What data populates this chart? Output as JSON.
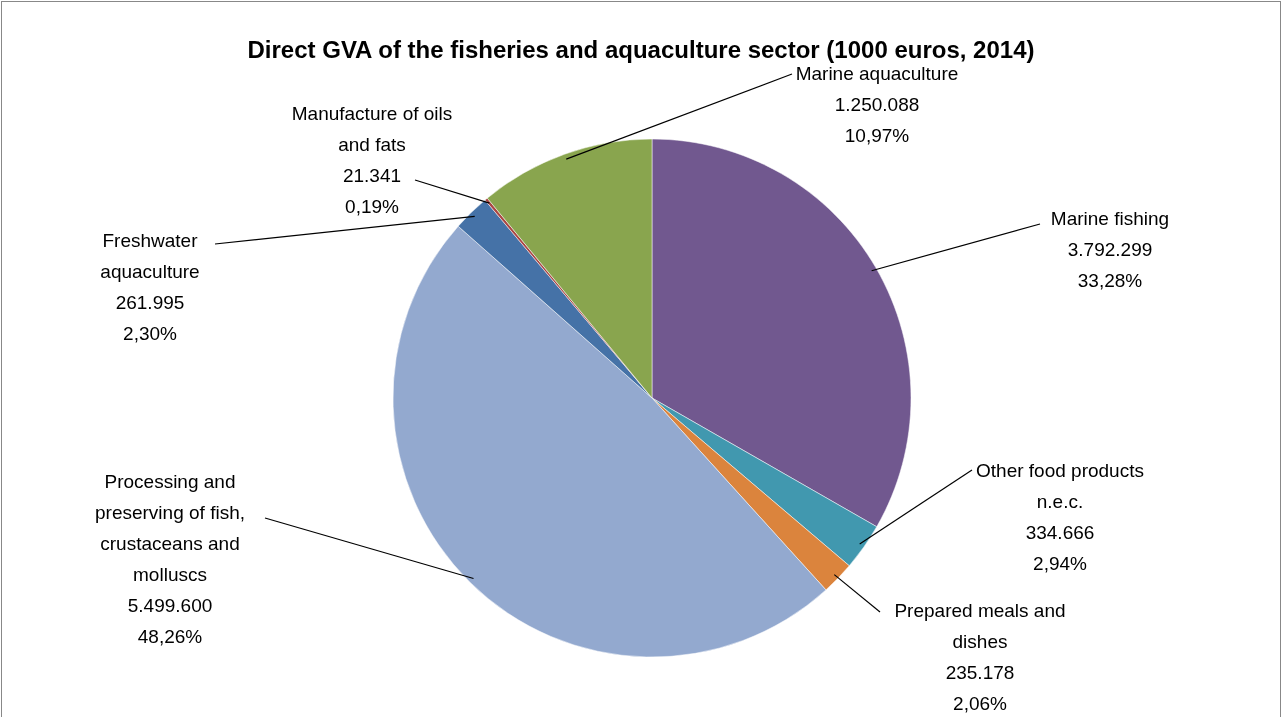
{
  "chart_data": {
    "type": "pie",
    "title": "Direct GVA of the fisheries and aquaculture sector (1000 euros, 2014)",
    "categories": [
      "Marine fishing",
      "Other food products n.e.c.",
      "Prepared meals and dishes",
      "Processing and preserving of fish, crustaceans and molluscs",
      "Freshwater aquaculture",
      "Manufacture of oils and fats",
      "Marine aquaculture"
    ],
    "values": [
      3792299,
      334666,
      235178,
      5499600,
      261995,
      21341,
      1250088
    ],
    "colors": [
      "#71588f",
      "#4198af",
      "#db843d",
      "#93a9cf",
      "#4572a7",
      "#aa4643",
      "#89a54e"
    ],
    "value_labels": [
      "3.792.299\n33,28%",
      "334.666\n2,94%",
      "235.178\n2,06%",
      "5.499.600\n48,26%",
      "261.995\n2,30%",
      "21.341\n0,19%",
      "1.250.088\n10,97%"
    ]
  }
}
